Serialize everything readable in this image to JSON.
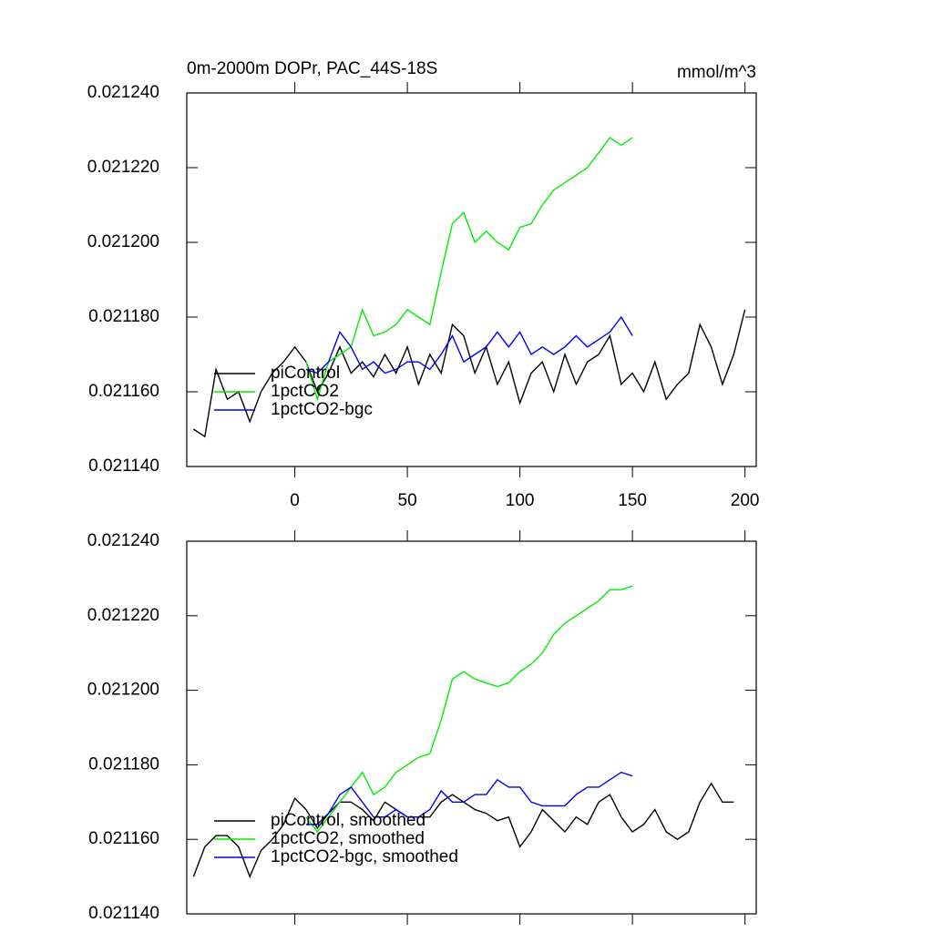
{
  "chart_data": [
    {
      "type": "line",
      "title": "0m-2000m DOPr, PAC_44S-18S",
      "units": "mmol/m^3",
      "x": [
        -45,
        -40,
        -35,
        -30,
        -25,
        -20,
        -15,
        -10,
        -5,
        0,
        5,
        10,
        15,
        20,
        25,
        30,
        35,
        40,
        45,
        50,
        55,
        60,
        65,
        70,
        75,
        80,
        85,
        90,
        95,
        100,
        105,
        110,
        115,
        120,
        125,
        130,
        135,
        140,
        145,
        150,
        155,
        160,
        165,
        170,
        175,
        180,
        185,
        190,
        195,
        200
      ],
      "series": [
        {
          "name": "piControl",
          "color": "#000000",
          "values": [
            0.02115,
            0.021148,
            0.021166,
            0.021158,
            0.02116,
            0.021152,
            0.02116,
            0.021165,
            0.021168,
            0.021172,
            0.021168,
            0.02116,
            0.021165,
            0.021172,
            0.021165,
            0.021168,
            0.021164,
            0.02117,
            0.021165,
            0.021172,
            0.021162,
            0.02117,
            0.021165,
            0.021178,
            0.021175,
            0.021165,
            0.021172,
            0.021162,
            0.021168,
            0.021157,
            0.021165,
            0.021168,
            0.02116,
            0.02117,
            0.021162,
            0.021168,
            0.02117,
            0.021175,
            0.021162,
            0.021165,
            0.02116,
            0.021168,
            0.021158,
            0.021162,
            0.021165,
            0.021178,
            0.021172,
            0.021162,
            0.02117,
            0.021182
          ]
        },
        {
          "name": "1pctCO2",
          "color": "#00ee00",
          "values": [
            null,
            null,
            null,
            null,
            null,
            null,
            null,
            null,
            null,
            null,
            0.021168,
            0.021158,
            0.021168,
            0.02117,
            0.021172,
            0.021182,
            0.021175,
            0.021176,
            0.021178,
            0.021182,
            0.02118,
            0.021178,
            0.021192,
            0.021205,
            0.021208,
            0.0212,
            0.021203,
            0.0212,
            0.021198,
            0.021204,
            0.021205,
            0.02121,
            0.021214,
            0.021216,
            0.021218,
            0.02122,
            0.021224,
            0.021228,
            0.021226,
            0.021228,
            null,
            null,
            null,
            null,
            null,
            null,
            null,
            null,
            null,
            null
          ]
        },
        {
          "name": "1pctCO2-bgc",
          "color": "#0000ee",
          "values": [
            null,
            null,
            null,
            null,
            null,
            null,
            null,
            null,
            null,
            null,
            0.021166,
            0.021165,
            0.021168,
            0.021176,
            0.021172,
            0.021166,
            0.021168,
            0.021165,
            0.021166,
            0.021168,
            0.021168,
            0.021166,
            0.02117,
            0.021175,
            0.021168,
            0.02117,
            0.021172,
            0.021176,
            0.021172,
            0.021176,
            0.02117,
            0.021172,
            0.02117,
            0.021172,
            0.021175,
            0.021172,
            0.021174,
            0.021176,
            0.02118,
            0.021175,
            null,
            null,
            null,
            null,
            null,
            null,
            null,
            null,
            null,
            null
          ]
        }
      ],
      "xlim": [
        -48,
        205
      ],
      "xticks": [
        0,
        50,
        100,
        150,
        200
      ],
      "xtick_labels": true,
      "ylim": [
        0.02114,
        0.02124
      ],
      "yticks": [
        {
          "value": 0.02114,
          "label": "0.021140"
        },
        {
          "value": 0.02116,
          "label": "0.021160"
        },
        {
          "value": 0.02118,
          "label": "0.021180"
        },
        {
          "value": 0.0212,
          "label": "0.021200"
        },
        {
          "value": 0.02122,
          "label": "0.021220"
        },
        {
          "value": 0.02124,
          "label": "0.021240"
        }
      ],
      "legend": "lower left"
    },
    {
      "type": "line",
      "x": [
        -45,
        -40,
        -35,
        -30,
        -25,
        -20,
        -15,
        -10,
        -5,
        0,
        5,
        10,
        15,
        20,
        25,
        30,
        35,
        40,
        45,
        50,
        55,
        60,
        65,
        70,
        75,
        80,
        85,
        90,
        95,
        100,
        105,
        110,
        115,
        120,
        125,
        130,
        135,
        140,
        145,
        150,
        155,
        160,
        165,
        170,
        175,
        180,
        185,
        190,
        195,
        200
      ],
      "series": [
        {
          "name": "piControl, smoothed",
          "color": "#000000",
          "values": [
            0.02115,
            0.021158,
            0.021161,
            0.021161,
            0.021158,
            0.02115,
            0.021157,
            0.02116,
            0.021164,
            0.021171,
            0.021168,
            0.021163,
            0.021167,
            0.02117,
            0.02117,
            0.021168,
            0.021165,
            0.02117,
            0.021168,
            0.021166,
            0.021166,
            0.021166,
            0.02117,
            0.021172,
            0.02117,
            0.021168,
            0.021167,
            0.021165,
            0.021166,
            0.021158,
            0.021162,
            0.021168,
            0.021165,
            0.021162,
            0.021166,
            0.021164,
            0.02117,
            0.021172,
            0.021166,
            0.021162,
            0.021164,
            0.021168,
            0.021162,
            0.02116,
            0.021162,
            0.02117,
            0.021175,
            0.02117,
            0.02117,
            null
          ]
        },
        {
          "name": "1pctCO2, smoothed",
          "color": "#00ee00",
          "values": [
            null,
            null,
            null,
            null,
            null,
            null,
            null,
            null,
            null,
            null,
            0.021166,
            0.021162,
            0.021166,
            0.02117,
            0.021174,
            0.021178,
            0.021172,
            0.021174,
            0.021178,
            0.02118,
            0.021182,
            0.021183,
            0.021192,
            0.021203,
            0.021205,
            0.021203,
            0.021202,
            0.021201,
            0.021202,
            0.021205,
            0.021207,
            0.02121,
            0.021215,
            0.021218,
            0.02122,
            0.021222,
            0.021224,
            0.021227,
            0.021227,
            0.021228,
            null,
            null,
            null,
            null,
            null,
            null,
            null,
            null,
            null,
            null
          ]
        },
        {
          "name": "1pctCO2-bgc, smoothed",
          "color": "#0000ee",
          "values": [
            null,
            null,
            null,
            null,
            null,
            null,
            null,
            null,
            null,
            null,
            0.021164,
            0.021164,
            0.021167,
            0.021172,
            0.021174,
            0.02117,
            0.021166,
            0.021166,
            0.021168,
            0.021166,
            0.021166,
            0.021168,
            0.021173,
            0.02117,
            0.02117,
            0.021172,
            0.021172,
            0.021176,
            0.021174,
            0.021174,
            0.02117,
            0.021169,
            0.021169,
            0.021169,
            0.021172,
            0.021174,
            0.021174,
            0.021176,
            0.021178,
            0.021177,
            null,
            null,
            null,
            null,
            null,
            null,
            null,
            null,
            null,
            null
          ]
        }
      ],
      "xlim": [
        -48,
        205
      ],
      "xticks": [
        0,
        50,
        100,
        150,
        200
      ],
      "xtick_labels": false,
      "ylim": [
        0.02114,
        0.02124
      ],
      "yticks": [
        {
          "value": 0.02114,
          "label": "0.021140"
        },
        {
          "value": 0.02116,
          "label": "0.021160"
        },
        {
          "value": 0.02118,
          "label": "0.021180"
        },
        {
          "value": 0.0212,
          "label": "0.021200"
        },
        {
          "value": 0.02122,
          "label": "0.021220"
        },
        {
          "value": 0.02124,
          "label": "0.021240"
        }
      ],
      "legend": "lower left"
    }
  ]
}
